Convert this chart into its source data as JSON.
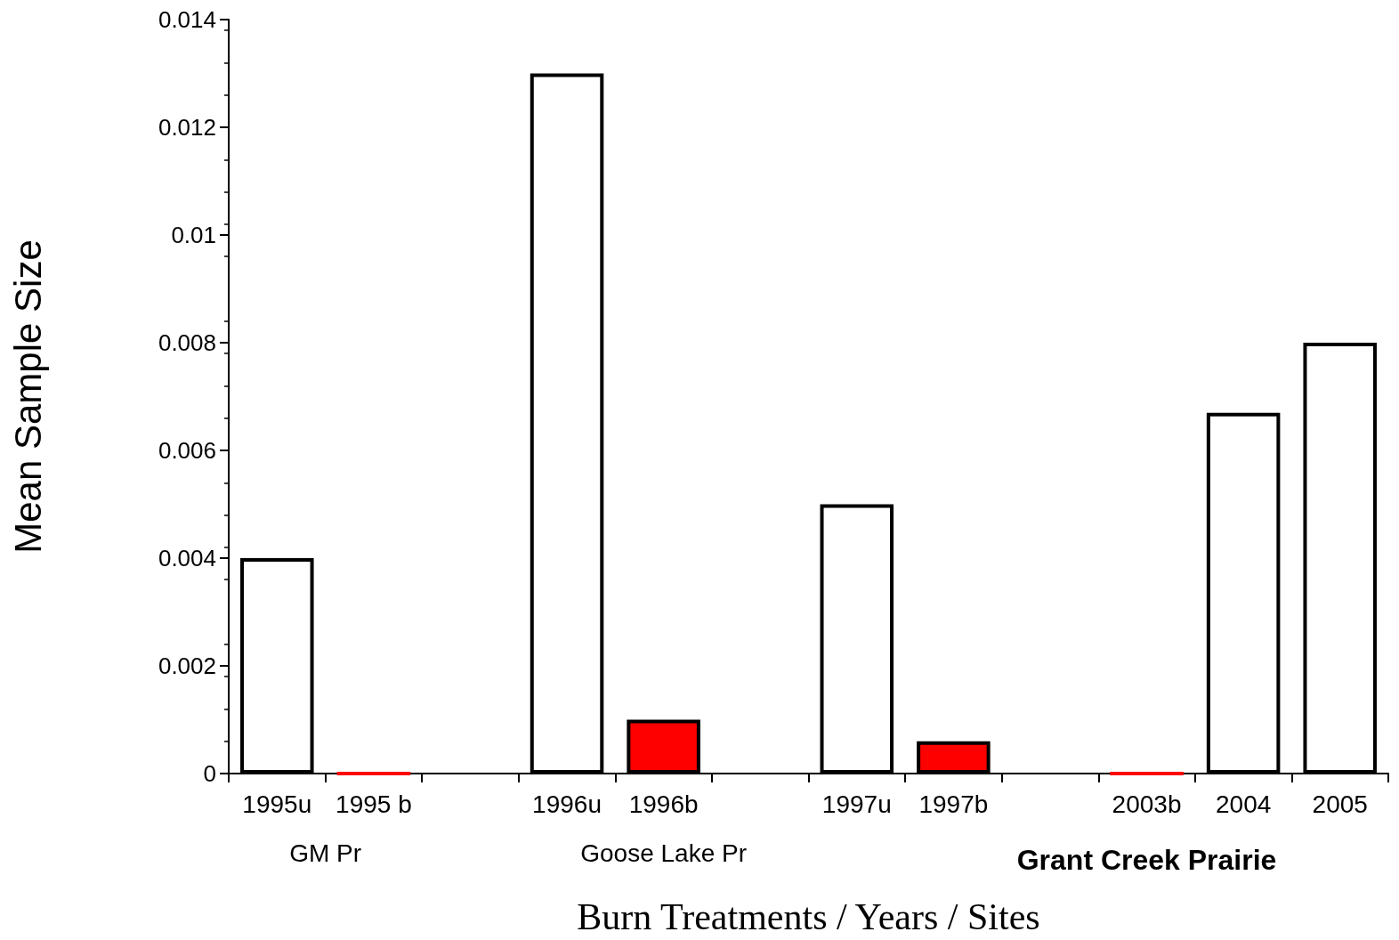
{
  "chart_data": {
    "type": "bar",
    "xlabel": "Burn Treatments / Years / Sites",
    "ylabel": "Mean Sample Size",
    "categories": [
      "1995u",
      "1995 b",
      null,
      "1996u",
      "1996b",
      null,
      "1997u",
      "1997b",
      null,
      "2003b",
      "2004",
      "2005"
    ],
    "values": [
      0.004,
      0,
      null,
      0.013,
      0.001,
      null,
      0.005,
      0.0006,
      null,
      0,
      0.0067,
      0.008
    ],
    "colors": [
      "#ffffff",
      "#ff0000",
      null,
      "#ffffff",
      "#ff0000",
      null,
      "#ffffff",
      "#ff0000",
      null,
      "#ff0000",
      "#ffffff",
      "#ffffff"
    ],
    "ylim": [
      0,
      0.014
    ],
    "yticks": [
      0,
      0.002,
      0.004,
      0.006,
      0.008,
      0.01,
      0.012,
      0.014
    ],
    "annotations": [
      "GM Pr",
      "Goose Lake Pr",
      "Grant Creek Prairie"
    ],
    "grid": false
  }
}
